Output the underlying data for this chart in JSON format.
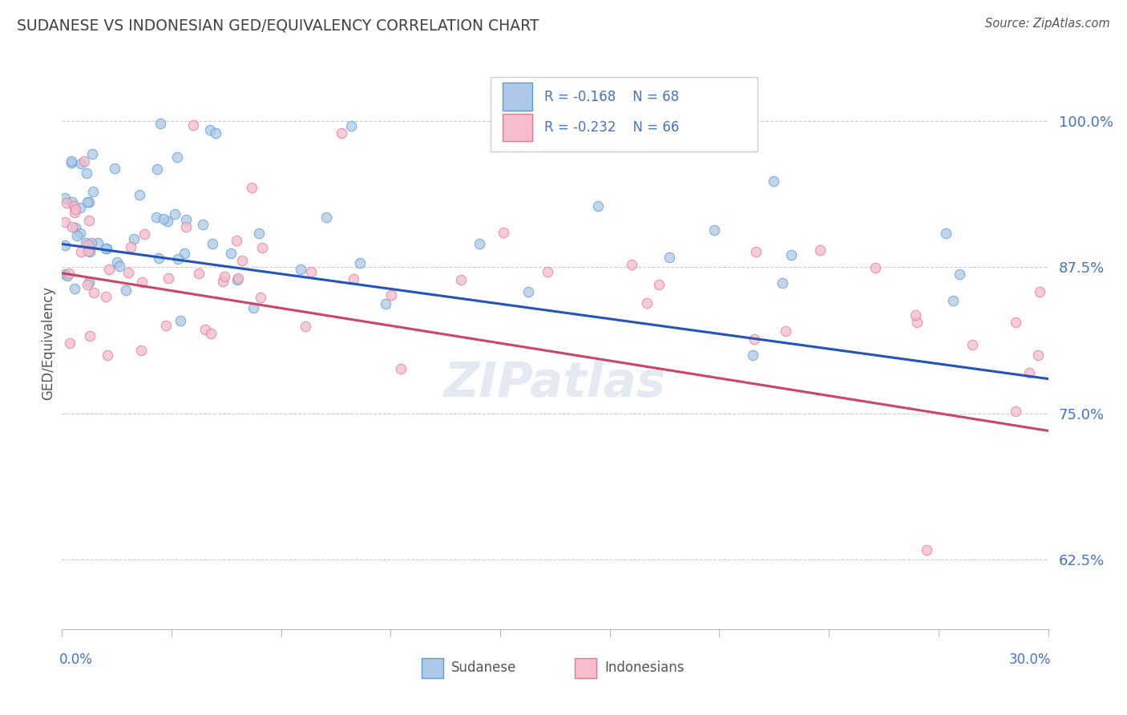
{
  "title": "SUDANESE VS INDONESIAN GED/EQUIVALENCY CORRELATION CHART",
  "source": "Source: ZipAtlas.com",
  "ylabel": "GED/Equivalency",
  "x_min": 0.0,
  "x_max": 0.3,
  "y_min": 0.565,
  "y_max": 1.055,
  "y_ticks": [
    0.625,
    0.75,
    0.875,
    1.0
  ],
  "y_tick_labels": [
    "62.5%",
    "75.0%",
    "87.5%",
    "100.0%"
  ],
  "sudanese_color": "#adc8e8",
  "sudanese_edge_color": "#5b9bd5",
  "indonesian_color": "#f5bccb",
  "indonesian_edge_color": "#e07898",
  "trendline_blue": "#2255bb",
  "trendline_pink": "#cc4466",
  "legend_R_blue": "-0.168",
  "legend_N_blue": "68",
  "legend_R_pink": "-0.232",
  "legend_N_pink": "66",
  "legend_color": "#4472c4",
  "watermark": "ZIPatlas",
  "background_color": "#ffffff",
  "grid_color": "#cccccc",
  "title_color": "#404040",
  "tick_label_color": "#4472c4",
  "source_color": "#555555",
  "ylabel_color": "#555555",
  "bottom_legend_color": "#555555"
}
